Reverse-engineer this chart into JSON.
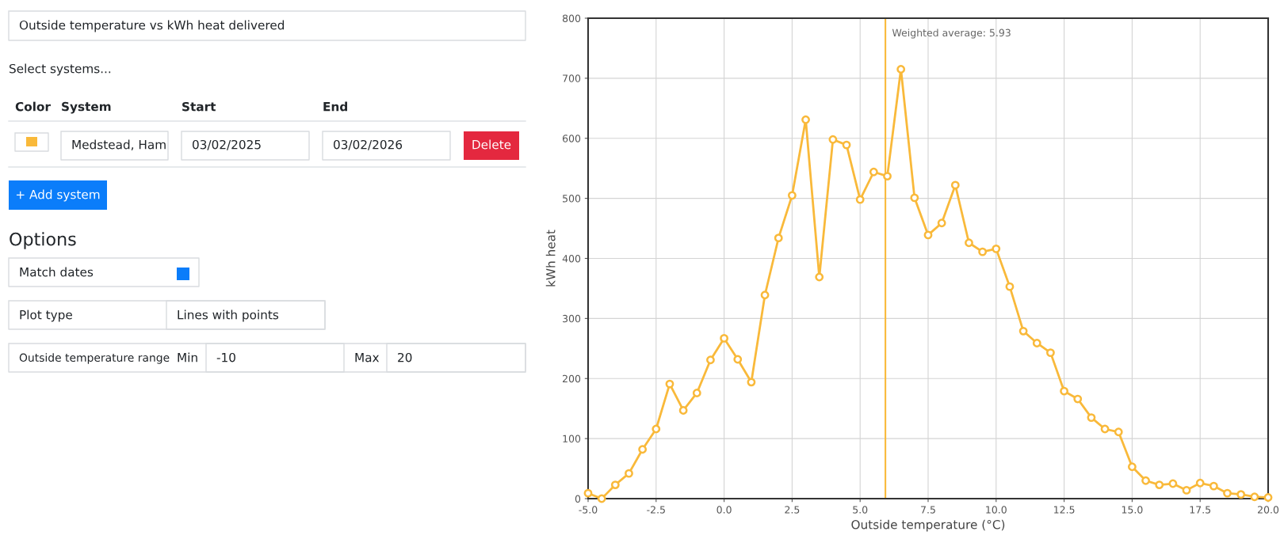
{
  "chart_data": [
    {
      "type": "other",
      "annotations": [
        "Outside temperature vs kWh heat delivered",
        "Select systems...",
        "Color",
        "System",
        "Start",
        "End",
        "Medstead, Ham",
        "03/02/2025",
        "03/02/2026",
        "Delete",
        "+ Add system",
        "Options",
        "Match dates",
        "Plot type",
        "Lines with points",
        "Outside temperature range",
        "Min",
        "-10",
        "Max",
        "20"
      ]
    },
    {
      "type": "line",
      "xlabel": "Outside temperature (°C)",
      "ylabel": "kWh heat",
      "x": [
        -5,
        -4.5,
        -4,
        -3.5,
        -3,
        -2.5,
        -2,
        -1.5,
        -1,
        -0.5,
        0,
        0.5,
        1,
        1.5,
        2,
        2.5,
        3,
        3.5,
        4,
        4.5,
        5,
        5.5,
        6,
        6.5,
        7,
        7.5,
        8,
        8.5,
        9,
        9.5,
        10,
        10.5,
        11,
        11.5,
        12,
        12.5,
        13,
        13.5,
        14,
        14.5,
        15,
        15.5,
        16,
        16.5,
        17,
        17.5,
        18,
        18.5,
        19,
        19.5,
        20
      ],
      "series": [
        {
          "color": "#f9b93a",
          "values": [
            9,
            0,
            23,
            42,
            82,
            116,
            191,
            147,
            176,
            231,
            267,
            232,
            194,
            339,
            434,
            505,
            631,
            369,
            598,
            589,
            498,
            544,
            537,
            715,
            501,
            439,
            459,
            522,
            426,
            411,
            416,
            353,
            279,
            259,
            243,
            179,
            166,
            135,
            116,
            111,
            53,
            30,
            23,
            25,
            14,
            26,
            21,
            9,
            7,
            3,
            2
          ]
        }
      ],
      "xlim": [
        -5,
        20
      ],
      "xticks": [
        {
          "value": -5,
          "label": "-5.0"
        },
        {
          "value": -2.5,
          "label": "-2.5"
        },
        {
          "value": 0,
          "label": "0.0"
        },
        {
          "value": 2.5,
          "label": "2.5"
        },
        {
          "value": 5,
          "label": "5.0"
        },
        {
          "value": 7.5,
          "label": "7.5"
        },
        {
          "value": 10,
          "label": "10.0"
        },
        {
          "value": 12.5,
          "label": "12.5"
        },
        {
          "value": 15,
          "label": "15.0"
        },
        {
          "value": 17.5,
          "label": "17.5"
        },
        {
          "value": 20,
          "label": "20.0"
        }
      ],
      "ylim": [
        0,
        800
      ],
      "yticks": [
        0,
        100,
        200,
        300,
        400,
        500,
        600,
        700,
        800
      ],
      "ref_lines": [
        {
          "axis": "x",
          "value": 5.93,
          "label": "Weighted average: 5.93",
          "color": "#f9b93a"
        }
      ],
      "grid": true,
      "marker": "circle",
      "line_style": "solid"
    }
  ]
}
